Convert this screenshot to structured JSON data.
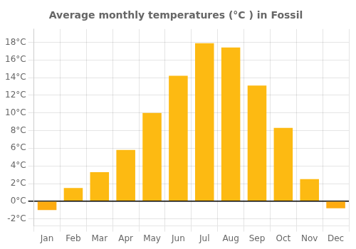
{
  "chart_data": {
    "type": "bar",
    "title": "Average monthly temperatures (°C ) in Fossil",
    "categories": [
      "Jan",
      "Feb",
      "Mar",
      "Apr",
      "May",
      "Jun",
      "Jul",
      "Aug",
      "Sep",
      "Oct",
      "Nov",
      "Dec"
    ],
    "values": [
      -1.0,
      1.5,
      3.3,
      5.8,
      10.0,
      14.2,
      17.9,
      17.4,
      13.1,
      8.3,
      2.5,
      -0.8
    ],
    "colors": [
      "#FDAB10",
      "#FDBA12",
      "#FDBA12",
      "#FDBA12",
      "#FDBA12",
      "#FDBA12",
      "#FDBA12",
      "#FDBA12",
      "#FDBA12",
      "#FDBA12",
      "#FDBA12",
      "#FDAB10"
    ],
    "ylim": [
      -2.8,
      19.5
    ],
    "yticks": [
      {
        "value": -2,
        "label": "-2°C"
      },
      {
        "value": 0,
        "label": "0°C"
      },
      {
        "value": 2,
        "label": "2°C"
      },
      {
        "value": 4,
        "label": "4°C"
      },
      {
        "value": 6,
        "label": "6°C"
      },
      {
        "value": 8,
        "label": "8°C"
      },
      {
        "value": 10,
        "label": "10°C"
      },
      {
        "value": 12,
        "label": "12°C"
      },
      {
        "value": 14,
        "label": "14°C"
      },
      {
        "value": 16,
        "label": "16°C"
      },
      {
        "value": 18,
        "label": "18°C"
      }
    ],
    "grid": true
  }
}
